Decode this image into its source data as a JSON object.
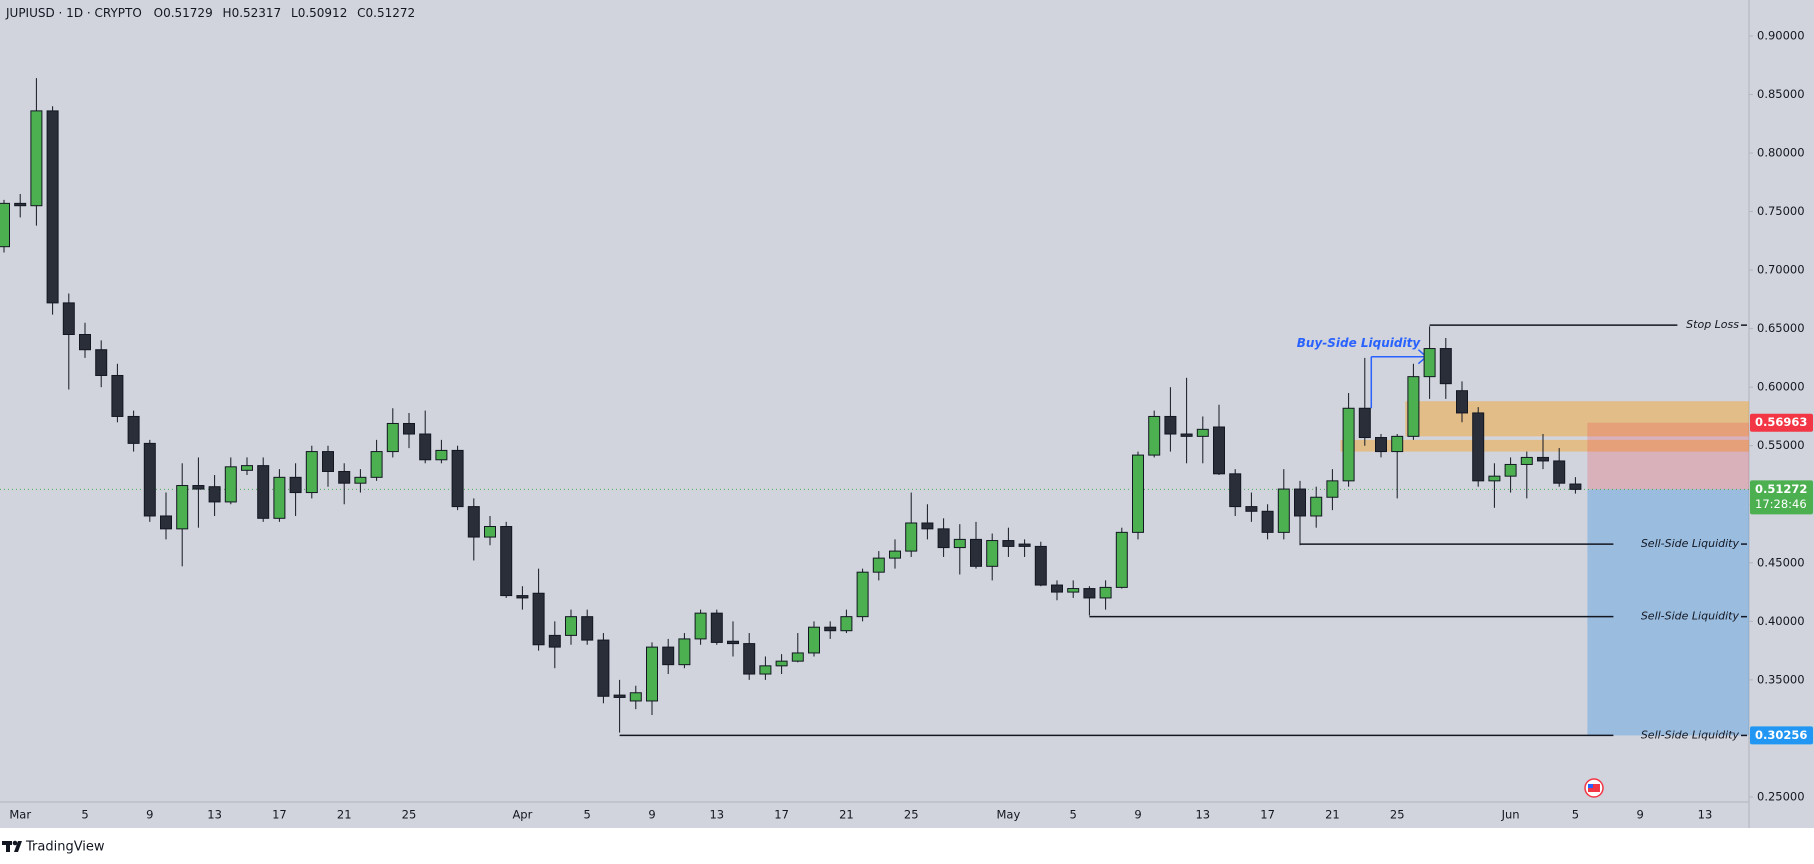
{
  "header": {
    "symbol": "JUPIUSD · 1D · CRYPTO",
    "ohlc_prefixes": [
      "O",
      "H",
      "L",
      "C"
    ]
  },
  "footer": {
    "brand": "TradingView"
  },
  "chart_data": {
    "type": "candlestick",
    "background": "#d1d4dc",
    "up_color": "#4caf50",
    "down_color": "#2a2e39",
    "grid": false,
    "ylim": [
      0.2457,
      0.9307
    ],
    "yticks": [
      {
        "value": 0.25,
        "label": "0.25000"
      },
      {
        "value": 0.3,
        "label": "0.30000"
      },
      {
        "value": 0.35,
        "label": "0.35000"
      },
      {
        "value": 0.4,
        "label": "0.40000"
      },
      {
        "value": 0.45,
        "label": "0.45000"
      },
      {
        "value": 0.5,
        "label": "0.50000"
      },
      {
        "value": 0.55,
        "label": "0.55000"
      },
      {
        "value": 0.6,
        "label": "0.60000"
      },
      {
        "value": 0.65,
        "label": "0.65000"
      },
      {
        "value": 0.7,
        "label": "0.70000"
      },
      {
        "value": 0.75,
        "label": "0.75000"
      },
      {
        "value": 0.8,
        "label": "0.80000"
      },
      {
        "value": 0.85,
        "label": "0.85000"
      },
      {
        "value": 0.9,
        "label": "0.90000"
      }
    ],
    "categories": [
      null,
      "Mar",
      null,
      null,
      null,
      "5",
      null,
      null,
      null,
      "9",
      null,
      null,
      null,
      "13",
      null,
      null,
      null,
      "17",
      null,
      null,
      null,
      "21",
      null,
      null,
      null,
      "25",
      null,
      null,
      null,
      null,
      null,
      null,
      "Apr",
      null,
      null,
      null,
      "5",
      null,
      null,
      null,
      "9",
      null,
      null,
      null,
      "13",
      null,
      null,
      null,
      "17",
      null,
      null,
      null,
      "21",
      null,
      null,
      null,
      "25",
      null,
      null,
      null,
      null,
      null,
      "May",
      null,
      null,
      null,
      "5",
      null,
      null,
      null,
      "9",
      null,
      null,
      null,
      "13",
      null,
      null,
      null,
      "17",
      null,
      null,
      null,
      "21",
      null,
      null,
      null,
      "25",
      null,
      null,
      null,
      null,
      null,
      null,
      "Jun",
      null,
      null,
      null,
      "5",
      null,
      null,
      null,
      "9",
      null,
      null,
      null,
      "13",
      null
    ],
    "open": [
      0.72,
      0.757,
      0.755,
      0.836,
      0.672,
      0.645,
      0.632,
      0.61,
      0.575,
      0.552,
      0.49,
      0.479,
      0.516,
      0.515,
      0.502,
      0.529,
      0.533,
      0.488,
      0.523,
      0.51,
      0.545,
      0.528,
      0.518,
      0.523,
      0.545,
      0.569,
      0.56,
      0.538,
      0.546,
      0.498,
      0.472,
      0.481,
      0.422,
      0.424,
      0.388,
      0.388,
      0.404,
      0.384,
      0.337,
      0.332,
      0.332,
      0.378,
      0.363,
      0.385,
      0.407,
      0.383,
      0.381,
      0.355,
      0.362,
      0.366,
      0.373,
      0.395,
      0.392,
      0.404,
      0.442,
      0.454,
      0.46,
      0.484,
      0.479,
      0.463,
      0.47,
      0.447,
      0.469,
      0.466,
      0.464,
      0.431,
      0.425,
      0.428,
      0.42,
      0.429,
      0.476,
      0.542,
      0.575,
      0.56,
      0.558,
      0.566,
      0.526,
      0.498,
      0.494,
      0.476,
      0.513,
      0.49,
      0.506,
      0.52,
      0.582,
      0.557,
      0.545,
      0.558,
      0.609,
      0.633,
      0.597,
      0.578,
      0.52,
      0.524,
      0.534,
      0.54,
      0.537,
      0.51729,
      null,
      null,
      null,
      null,
      null,
      null,
      null,
      null,
      null
    ],
    "high": [
      0.76,
      0.765,
      0.864,
      0.84,
      0.68,
      0.655,
      0.64,
      0.62,
      0.58,
      0.555,
      0.51,
      0.535,
      0.54,
      0.525,
      0.54,
      0.54,
      0.54,
      0.53,
      0.535,
      0.55,
      0.55,
      0.535,
      0.53,
      0.555,
      0.582,
      0.578,
      0.58,
      0.555,
      0.55,
      0.505,
      0.49,
      0.485,
      0.43,
      0.445,
      0.4,
      0.41,
      0.41,
      0.39,
      0.35,
      0.345,
      0.382,
      0.385,
      0.39,
      0.41,
      0.41,
      0.4,
      0.39,
      0.37,
      0.372,
      0.39,
      0.4,
      0.4,
      0.41,
      0.445,
      0.46,
      0.47,
      0.51,
      0.5,
      0.488,
      0.483,
      0.485,
      0.475,
      0.48,
      0.47,
      0.468,
      0.435,
      0.435,
      0.43,
      0.435,
      0.48,
      0.545,
      0.58,
      0.6,
      0.608,
      0.575,
      0.585,
      0.53,
      0.51,
      0.5,
      0.53,
      0.52,
      0.515,
      0.53,
      0.595,
      0.625,
      0.56,
      0.56,
      0.62,
      0.652,
      0.642,
      0.605,
      0.583,
      0.535,
      0.54,
      0.545,
      0.56,
      0.548,
      0.52317,
      null,
      null,
      null,
      null,
      null,
      null,
      null,
      null,
      null
    ],
    "low": [
      0.715,
      0.745,
      0.738,
      0.662,
      0.598,
      0.625,
      0.6,
      0.57,
      0.545,
      0.485,
      0.47,
      0.447,
      0.48,
      0.49,
      0.5,
      0.525,
      0.485,
      0.485,
      0.49,
      0.505,
      0.515,
      0.5,
      0.51,
      0.52,
      0.54,
      0.548,
      0.535,
      0.535,
      0.495,
      0.452,
      0.465,
      0.42,
      0.41,
      0.375,
      0.36,
      0.38,
      0.38,
      0.33,
      0.305,
      0.325,
      0.32,
      0.355,
      0.36,
      0.38,
      0.38,
      0.37,
      0.35,
      0.35,
      0.355,
      0.365,
      0.37,
      0.385,
      0.39,
      0.4,
      0.435,
      0.445,
      0.455,
      0.47,
      0.455,
      0.44,
      0.445,
      0.435,
      0.455,
      0.455,
      0.43,
      0.418,
      0.42,
      0.405,
      0.41,
      0.428,
      0.47,
      0.54,
      0.545,
      0.535,
      0.535,
      0.525,
      0.49,
      0.485,
      0.47,
      0.47,
      0.465,
      0.48,
      0.495,
      0.515,
      0.55,
      0.54,
      0.505,
      0.555,
      0.59,
      0.59,
      0.57,
      0.515,
      0.497,
      0.51,
      0.505,
      0.53,
      0.515,
      0.50912,
      null,
      null,
      null,
      null,
      null,
      null,
      null,
      null,
      null
    ],
    "close": [
      0.757,
      0.755,
      0.836,
      0.672,
      0.645,
      0.632,
      0.61,
      0.575,
      0.552,
      0.49,
      0.479,
      0.516,
      0.513,
      0.502,
      0.532,
      0.533,
      0.488,
      0.523,
      0.51,
      0.545,
      0.528,
      0.518,
      0.523,
      0.545,
      0.569,
      0.56,
      0.538,
      0.546,
      0.498,
      0.472,
      0.481,
      0.422,
      0.42,
      0.38,
      0.378,
      0.404,
      0.384,
      0.336,
      0.335,
      0.339,
      0.378,
      0.363,
      0.385,
      0.407,
      0.382,
      0.381,
      0.355,
      0.362,
      0.366,
      0.373,
      0.395,
      0.392,
      0.404,
      0.442,
      0.454,
      0.46,
      0.484,
      0.479,
      0.463,
      0.47,
      0.447,
      0.469,
      0.464,
      0.464,
      0.431,
      0.425,
      0.428,
      0.42,
      0.429,
      0.476,
      0.542,
      0.575,
      0.56,
      0.558,
      0.564,
      0.526,
      0.498,
      0.494,
      0.476,
      0.513,
      0.49,
      0.506,
      0.52,
      0.582,
      0.557,
      0.545,
      0.558,
      0.609,
      0.633,
      0.603,
      0.578,
      0.52,
      0.524,
      0.534,
      0.54,
      0.537,
      0.518,
      0.51272,
      null,
      null,
      null,
      null,
      null,
      null,
      null,
      null,
      null
    ],
    "levels": [
      {
        "label": "Stop Loss",
        "value": 0.653
      },
      {
        "label": "Sell-Side Liquidity",
        "value": 0.466
      },
      {
        "label": "Sell-Side Liquidity",
        "value": 0.404
      },
      {
        "label": "Sell-Side Liquidity",
        "value": 0.30256
      }
    ],
    "buy_side": {
      "label": "Buy-Side Liquidity",
      "value": 0.626
    },
    "zones": [
      {
        "low": 0.558,
        "high": 0.588
      },
      {
        "low": 0.545,
        "high": 0.555
      }
    ],
    "position": {
      "entry": 0.51272,
      "stop": 0.56963,
      "target": 0.30256
    },
    "countdown": "17:28:46"
  }
}
